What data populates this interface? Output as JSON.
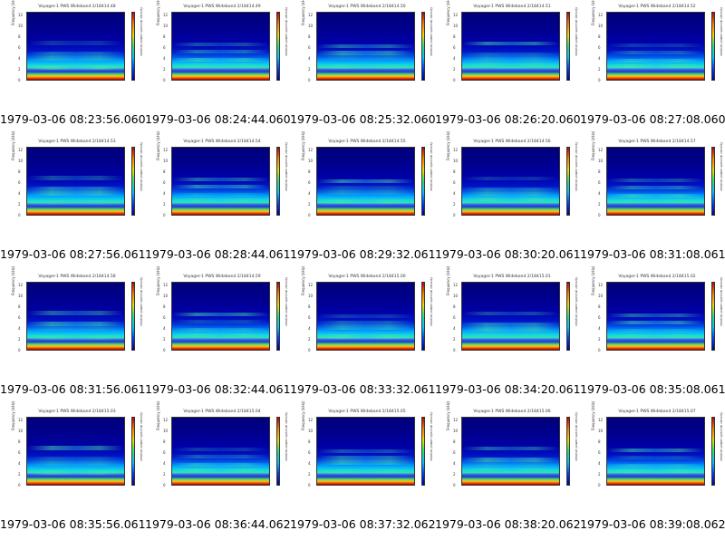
{
  "panels": [
    {
      "title": "Voyager-1 PWS Wideband 2/18414.48",
      "caption": "1979-03-06 08:23:56.060"
    },
    {
      "title": "Voyager-1 PWS Wideband 2/18414.49",
      "caption": "1979-03-06 08:24:44.060"
    },
    {
      "title": "Voyager-1 PWS Wideband 2/18414.50",
      "caption": "1979-03-06 08:25:32.060"
    },
    {
      "title": "Voyager-1 PWS Wideband 2/18414.51",
      "caption": "1979-03-06 08:26:20.060"
    },
    {
      "title": "Voyager-1 PWS Wideband 2/18414.52",
      "caption": "1979-03-06 08:27:08.060"
    },
    {
      "title": "Voyager-1 PWS Wideband 2/18414.53",
      "caption": "1979-03-06 08:27:56.061"
    },
    {
      "title": "Voyager-1 PWS Wideband 2/18414.54",
      "caption": "1979-03-06 08:28:44.061"
    },
    {
      "title": "Voyager-1 PWS Wideband 2/18414.55",
      "caption": "1979-03-06 08:29:32.061"
    },
    {
      "title": "Voyager-1 PWS Wideband 2/18414.56",
      "caption": "1979-03-06 08:30:20.061"
    },
    {
      "title": "Voyager-1 PWS Wideband 2/18414.57",
      "caption": "1979-03-06 08:31:08.061"
    },
    {
      "title": "Voyager-1 PWS Wideband 2/18414.58",
      "caption": "1979-03-06 08:31:56.061"
    },
    {
      "title": "Voyager-1 PWS Wideband 2/18414.59",
      "caption": "1979-03-06 08:32:44.061"
    },
    {
      "title": "Voyager-1 PWS Wideband 2/18415.00",
      "caption": "1979-03-06 08:33:32.061"
    },
    {
      "title": "Voyager-1 PWS Wideband 2/18415.01",
      "caption": "1979-03-06 08:34:20.061"
    },
    {
      "title": "Voyager-1 PWS Wideband 2/18415.02",
      "caption": "1979-03-06 08:35:08.061"
    },
    {
      "title": "Voyager-1 PWS Wideband 2/18415.03",
      "caption": "1979-03-06 08:35:56.061"
    },
    {
      "title": "Voyager-1 PWS Wideband 2/18415.04",
      "caption": "1979-03-06 08:36:44.062"
    },
    {
      "title": "Voyager-1 PWS Wideband 2/18415.05",
      "caption": "1979-03-06 08:37:32.062"
    },
    {
      "title": "Voyager-1 PWS Wideband 2/18415.06",
      "caption": "1979-03-06 08:38:20.062"
    },
    {
      "title": "Voyager-1 PWS Wideband 2/18415.07",
      "caption": "1979-03-06 08:39:08.062"
    }
  ],
  "axis": {
    "ylabel": "Frequency (kHz)",
    "yticks": [
      "12",
      "10",
      "8",
      "6",
      "4",
      "2",
      "0"
    ],
    "cbar_label": "relative power spectral density"
  },
  "colors": {
    "background": "#ffffff",
    "caption_text": "#000000"
  }
}
